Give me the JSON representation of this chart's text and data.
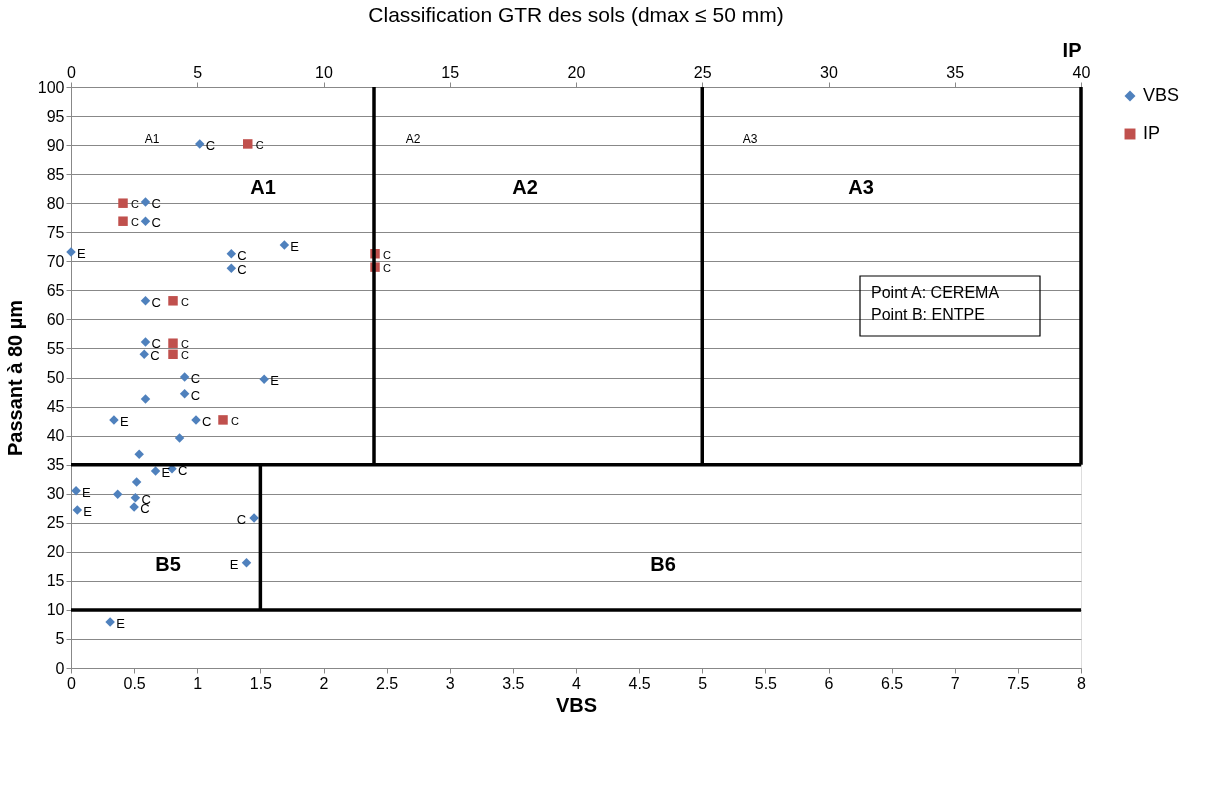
{
  "chart_data": {
    "type": "scatter",
    "title": "Classification GTR des sols (dmax ≤ 50 mm)",
    "xlabel": "VBS",
    "x2label": "IP",
    "ylabel": "Passant à 80 µm",
    "xlim": [
      0,
      8
    ],
    "xticks": [
      {
        "value": 0,
        "label": "0"
      },
      0.5,
      {
        "value": 1,
        "label": "1"
      },
      1.5,
      {
        "value": 2,
        "label": "2"
      },
      2.5,
      {
        "value": 3,
        "label": "3"
      },
      3.5,
      {
        "value": 4,
        "label": "4"
      },
      4.5,
      {
        "value": 5,
        "label": "5"
      },
      5.5,
      {
        "value": 6,
        "label": "6"
      },
      6.5,
      {
        "value": 7,
        "label": "7"
      },
      7.5,
      {
        "value": 8,
        "label": "8"
      }
    ],
    "x2lim": [
      0,
      40
    ],
    "x2ticks": [
      0,
      5,
      10,
      15,
      20,
      25,
      30,
      35,
      40
    ],
    "ylim": [
      0,
      100
    ],
    "yticks": [
      0,
      5,
      10,
      15,
      20,
      25,
      30,
      35,
      40,
      45,
      50,
      55,
      60,
      65,
      70,
      75,
      80,
      85,
      90,
      95,
      100
    ],
    "grid": "y",
    "legend": "right",
    "series": [
      {
        "name": "VBS",
        "marker": "diamond",
        "color": "#4f81bd",
        "x": [
          1.02,
          0.59,
          0.59,
          0.0,
          1.27,
          1.69,
          1.27,
          0.59,
          0.59,
          0.58,
          0.9,
          1.53,
          0.9,
          0.59,
          0.34,
          0.99,
          0.86,
          0.54,
          0.67,
          0.8,
          0.04,
          0.52,
          0.37,
          0.51,
          0.5,
          0.05,
          1.45,
          1.39,
          0.31
        ],
        "values": [
          90.2,
          80.2,
          76.9,
          71.6,
          71.3,
          72.8,
          68.8,
          63.2,
          56.1,
          54.0,
          50.1,
          49.7,
          47.2,
          46.3,
          42.7,
          42.7,
          39.6,
          36.8,
          33.9,
          34.3,
          30.5,
          32.0,
          29.9,
          29.3,
          27.7,
          27.2,
          25.8,
          18.1,
          7.9
        ],
        "value_labels": [
          "C",
          "C",
          "C",
          "E",
          "C",
          "E",
          "C",
          "C",
          "C",
          "C",
          "C",
          "E",
          "C",
          null,
          "E",
          "C",
          null,
          null,
          "E",
          "C",
          "E",
          null,
          null,
          "C",
          "C",
          "E",
          "C",
          "E",
          "E"
        ]
      },
      {
        "name": "IP",
        "marker": "square",
        "axis": "x2",
        "color": "#c0504d",
        "x": [
          7.0,
          2.06,
          2.06,
          4.04,
          4.04,
          4.04,
          6.02,
          12.04,
          12.04
        ],
        "values": [
          90.2,
          80.0,
          76.9,
          63.2,
          55.9,
          54.0,
          42.7,
          71.3,
          69.0
        ],
        "value_labels": [
          "C",
          "C",
          "C",
          "C",
          "C",
          "C",
          "C",
          "C",
          "C"
        ]
      },
      {
        "type": "line",
        "marker": "none",
        "color": "#000000",
        "x": [
          2.4,
          2.4
        ],
        "values": [
          35,
          100
        ]
      },
      {
        "type": "line",
        "marker": "none",
        "color": "#000000",
        "x": [
          5,
          5
        ],
        "values": [
          35,
          100
        ]
      },
      {
        "type": "line",
        "marker": "none",
        "color": "#000000",
        "x": [
          8,
          8
        ],
        "values": [
          35,
          100
        ]
      },
      {
        "type": "line",
        "marker": "none",
        "color": "#000000",
        "x": [
          0,
          8
        ],
        "values": [
          35,
          35
        ]
      },
      {
        "type": "line",
        "marker": "none",
        "color": "#000000",
        "x": [
          1.5,
          1.5
        ],
        "values": [
          10,
          35
        ]
      },
      {
        "type": "line",
        "marker": "none",
        "color": "#000000",
        "x": [
          0,
          8
        ],
        "values": [
          10,
          10
        ]
      }
    ],
    "annotations": [
      "A1",
      "A2",
      "A3",
      "A1",
      "A2",
      "A3",
      "B5",
      "B6",
      "Point A: CEREMA\nPoint B: ENTPE"
    ]
  }
}
